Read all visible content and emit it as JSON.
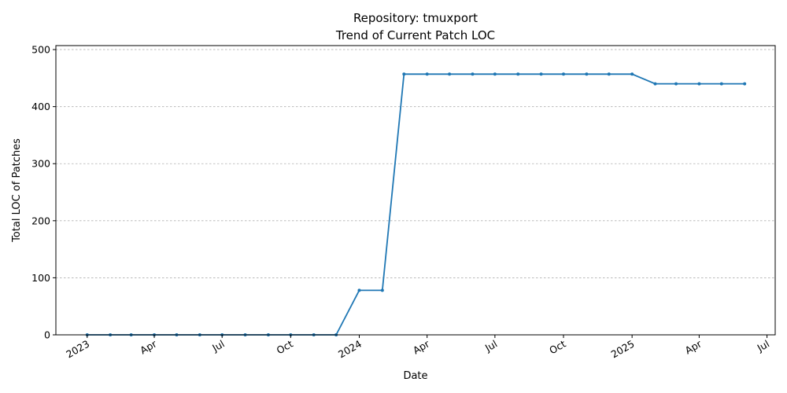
{
  "chart_data": {
    "type": "line",
    "title": "Repository: tmuxport",
    "subtitle": "Trend of Current Patch LOC",
    "xlabel": "Date",
    "ylabel": "Total LOC of Patches",
    "ylim": [
      0,
      507
    ],
    "xlim": [
      "2022-11-20",
      "2025-07-12"
    ],
    "grid": {
      "y": true,
      "x": false
    },
    "color": "#1f77b4",
    "x_ticks": [
      {
        "date": "2023-01-01",
        "label": "2023"
      },
      {
        "date": "2023-04-01",
        "label": "Apr"
      },
      {
        "date": "2023-07-01",
        "label": "Jul"
      },
      {
        "date": "2023-10-01",
        "label": "Oct"
      },
      {
        "date": "2024-01-01",
        "label": "2024"
      },
      {
        "date": "2024-04-01",
        "label": "Apr"
      },
      {
        "date": "2024-07-01",
        "label": "Jul"
      },
      {
        "date": "2024-10-01",
        "label": "Oct"
      },
      {
        "date": "2025-01-01",
        "label": "2025"
      },
      {
        "date": "2025-04-01",
        "label": "Apr"
      },
      {
        "date": "2025-07-01",
        "label": "Jul"
      }
    ],
    "y_ticks": [
      {
        "value": 0,
        "label": "0"
      },
      {
        "value": 100,
        "label": "100"
      },
      {
        "value": 200,
        "label": "200"
      },
      {
        "value": 300,
        "label": "300"
      },
      {
        "value": 400,
        "label": "400"
      },
      {
        "value": 500,
        "label": "500"
      }
    ],
    "series": [
      {
        "x": [
          "2023-01-01",
          "2023-02-01",
          "2023-03-01",
          "2023-04-01",
          "2023-05-01",
          "2023-06-01",
          "2023-07-01",
          "2023-08-01",
          "2023-09-01",
          "2023-10-01",
          "2023-11-01",
          "2023-12-01",
          "2024-01-01",
          "2024-02-01",
          "2024-03-01",
          "2024-04-01",
          "2024-05-01",
          "2024-06-01",
          "2024-07-01",
          "2024-08-01",
          "2024-09-01",
          "2024-10-01",
          "2024-11-01",
          "2024-12-01",
          "2025-01-01",
          "2025-02-01",
          "2025-03-01",
          "2025-04-01",
          "2025-05-01",
          "2025-06-01"
        ],
        "values": [
          0,
          0,
          0,
          0,
          0,
          0,
          0,
          0,
          0,
          0,
          0,
          0,
          78,
          78,
          457,
          457,
          457,
          457,
          457,
          457,
          457,
          457,
          457,
          457,
          457,
          440,
          440,
          440,
          440,
          440
        ]
      }
    ]
  }
}
